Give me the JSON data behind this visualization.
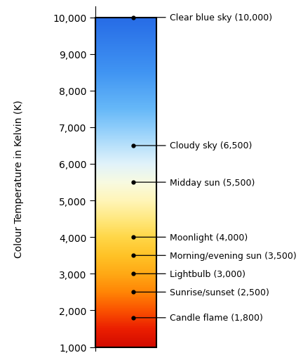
{
  "ylabel": "Colour Temperature in Kelvin (K)",
  "ymin": 1000,
  "ymax": 10000,
  "yticks": [
    1000,
    2000,
    3000,
    4000,
    5000,
    6000,
    7000,
    8000,
    9000,
    10000
  ],
  "ytick_labels": [
    "1,000",
    "2,000",
    "3,000",
    "4,000",
    "5,000",
    "6,000",
    "7,000",
    "8,000",
    "9,000",
    "10,000"
  ],
  "annotations": [
    {
      "temp": 10000,
      "label": "Clear blue sky (10,000)"
    },
    {
      "temp": 6500,
      "label": "Cloudy sky (6,500)"
    },
    {
      "temp": 5500,
      "label": "Midday sun (5,500)"
    },
    {
      "temp": 4000,
      "label": "Moonlight (4,000)"
    },
    {
      "temp": 3500,
      "label": "Morning/evening sun (3,500)"
    },
    {
      "temp": 3000,
      "label": "Lightbulb (3,000)"
    },
    {
      "temp": 2500,
      "label": "Sunrise/sunset (2,500)"
    },
    {
      "temp": 1800,
      "label": "Candle flame (1,800)"
    }
  ],
  "gradient_colors": [
    [
      1000,
      [
        0.82,
        0.04,
        0.0
      ]
    ],
    [
      1500,
      [
        0.92,
        0.12,
        0.0
      ]
    ],
    [
      2000,
      [
        0.98,
        0.32,
        0.0
      ]
    ],
    [
      2500,
      [
        1.0,
        0.52,
        0.02
      ]
    ],
    [
      3000,
      [
        1.0,
        0.66,
        0.08
      ]
    ],
    [
      3500,
      [
        1.0,
        0.76,
        0.15
      ]
    ],
    [
      4000,
      [
        1.0,
        0.84,
        0.28
      ]
    ],
    [
      4500,
      [
        1.0,
        0.91,
        0.5
      ]
    ],
    [
      5000,
      [
        1.0,
        0.96,
        0.72
      ]
    ],
    [
      5500,
      [
        0.97,
        0.98,
        0.88
      ]
    ],
    [
      6000,
      [
        0.88,
        0.95,
        0.98
      ]
    ],
    [
      6500,
      [
        0.72,
        0.88,
        0.98
      ]
    ],
    [
      7000,
      [
        0.55,
        0.8,
        0.98
      ]
    ],
    [
      7500,
      [
        0.4,
        0.72,
        0.97
      ]
    ],
    [
      8500,
      [
        0.25,
        0.58,
        0.95
      ]
    ],
    [
      10000,
      [
        0.15,
        0.42,
        0.9
      ]
    ]
  ],
  "background_color": "#ffffff",
  "bar_border_color": "#000000",
  "dot_color": "#000000",
  "ylabel_fontsize": 10,
  "annotation_fontsize": 9,
  "tick_fontsize": 9,
  "tick_label_color": "#000000"
}
